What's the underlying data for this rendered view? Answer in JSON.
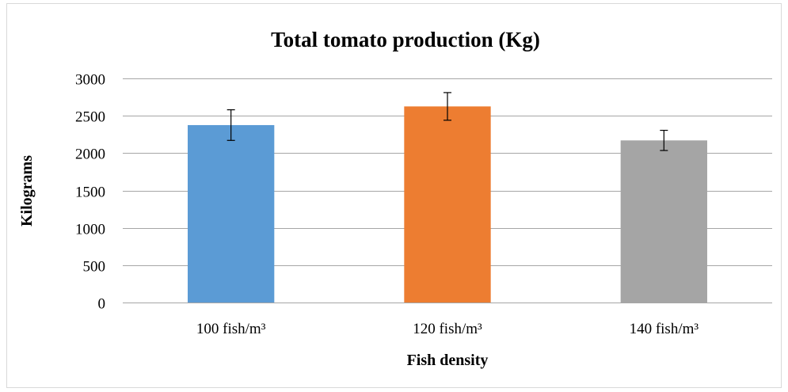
{
  "chart_data": {
    "type": "bar",
    "title": "Total tomato production (Kg)",
    "xlabel": "Fish density",
    "ylabel": "Kilograms",
    "categories": [
      "100 fish/m³",
      "120 fish/m³",
      "140 fish/m³"
    ],
    "series": [
      {
        "values": [
          2375,
          2625,
          2170
        ],
        "errors": [
          205,
          185,
          135
        ]
      }
    ],
    "bar_colors": [
      "#5b9bd5",
      "#ed7d31",
      "#a5a5a5"
    ],
    "ylim": [
      0,
      3000
    ],
    "yticks": [
      0,
      500,
      1000,
      1500,
      2000,
      2500,
      3000
    ],
    "grid": true,
    "legend": "none"
  }
}
